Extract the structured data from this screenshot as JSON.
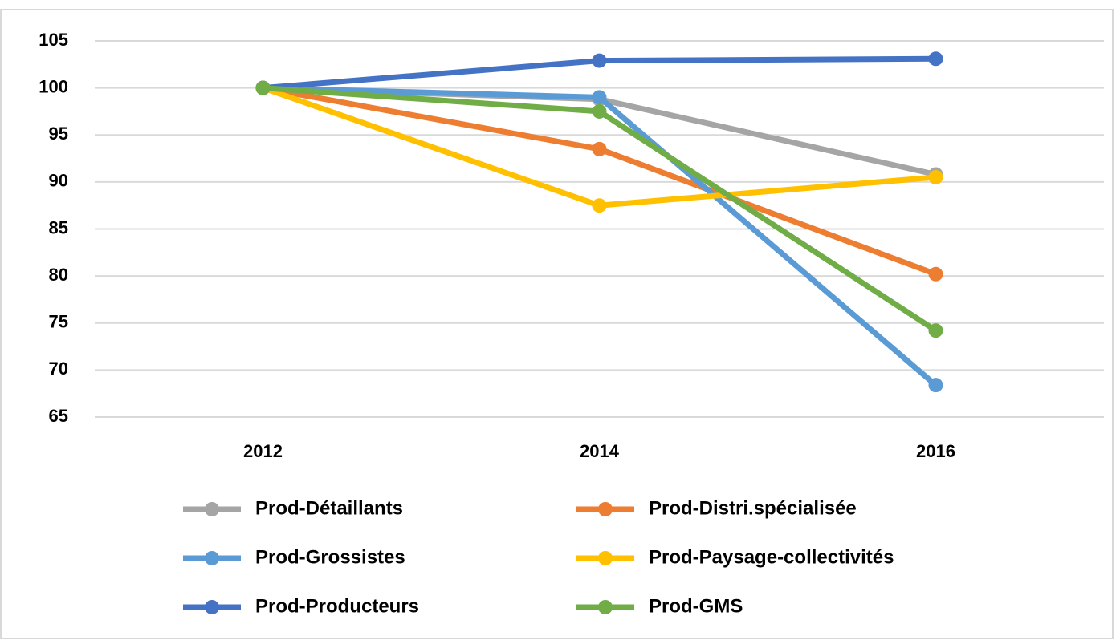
{
  "chart_data": {
    "type": "line",
    "categories": [
      "2012",
      "2014",
      "2016"
    ],
    "series": [
      {
        "name": "Prod-Détaillants",
        "color": "#a5a5a5",
        "values": [
          100,
          98.8,
          90.8
        ]
      },
      {
        "name": "Prod-Distri.spécialisée",
        "color": "#ed7d31",
        "values": [
          100,
          93.5,
          80.2
        ]
      },
      {
        "name": "Prod-Grossistes",
        "color": "#5b9bd5",
        "values": [
          100,
          99,
          68.4
        ]
      },
      {
        "name": "Prod-Paysage-collectivités",
        "color": "#ffc000",
        "values": [
          100,
          87.5,
          90.5
        ]
      },
      {
        "name": "Prod-Producteurs",
        "color": "#4472c4",
        "values": [
          100,
          102.9,
          103.1
        ]
      },
      {
        "name": "Prod-GMS",
        "color": "#70ad47",
        "values": [
          100,
          97.5,
          74.2
        ]
      }
    ],
    "ylim": [
      65,
      105
    ],
    "yticks": [
      65,
      70,
      75,
      80,
      85,
      90,
      95,
      100,
      105
    ],
    "grid": true,
    "legend": "bottom"
  }
}
